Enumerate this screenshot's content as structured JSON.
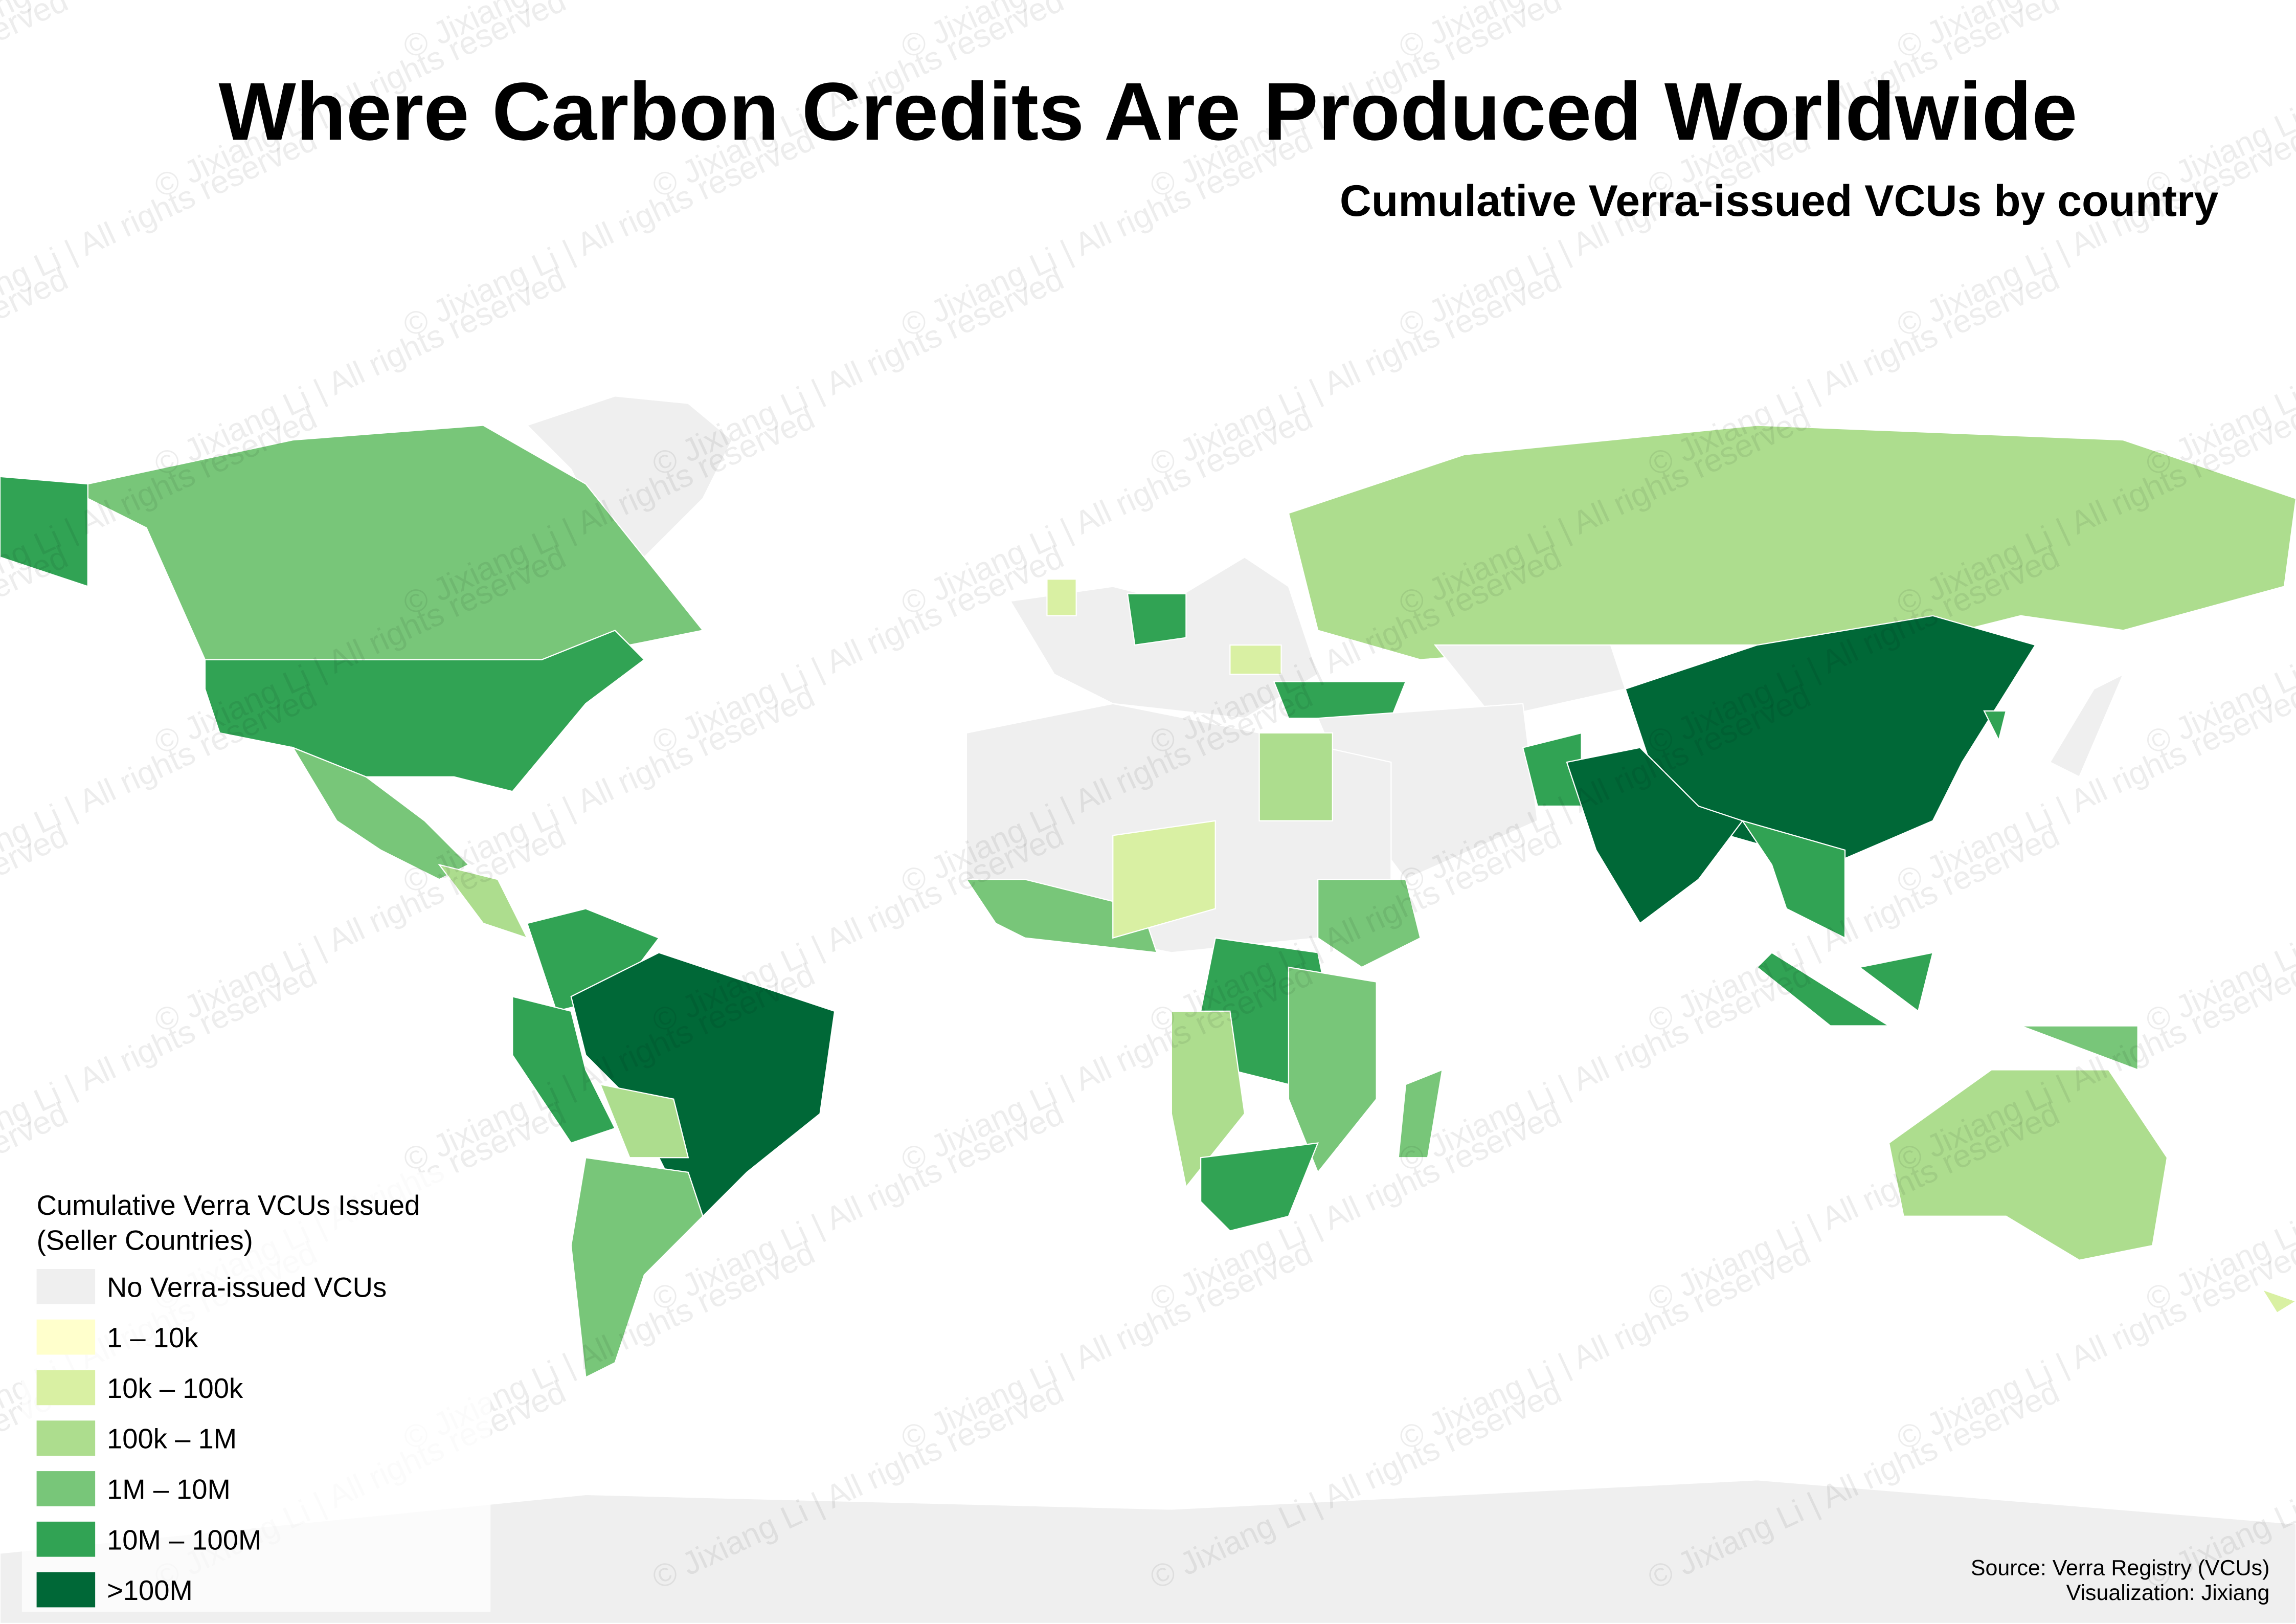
{
  "title": "Where Carbon Credits Are Produced Worldwide",
  "subtitle": "Cumulative Verra-issued VCUs by country",
  "legend": {
    "title_lines": [
      "Cumulative Verra VCUs Issued",
      "(Seller Countries)"
    ],
    "items": [
      {
        "label": "No Verra-issued VCUs",
        "color": "#efefef"
      },
      {
        "label": "1 – 10k",
        "color": "#ffffcc"
      },
      {
        "label": "10k – 100k",
        "color": "#d9f0a3"
      },
      {
        "label": "100k – 1M",
        "color": "#addd8e"
      },
      {
        "label": "1M – 10M",
        "color": "#78c679"
      },
      {
        "label": "10M – 100M",
        "color": "#31a354"
      },
      {
        "label": ">100M",
        "color": "#006837"
      }
    ]
  },
  "source_lines": [
    "Source: Verra Registry (VCUs)",
    "Visualization: Jixiang"
  ],
  "watermark": "© Jixiang Li | All rights reserved"
}
